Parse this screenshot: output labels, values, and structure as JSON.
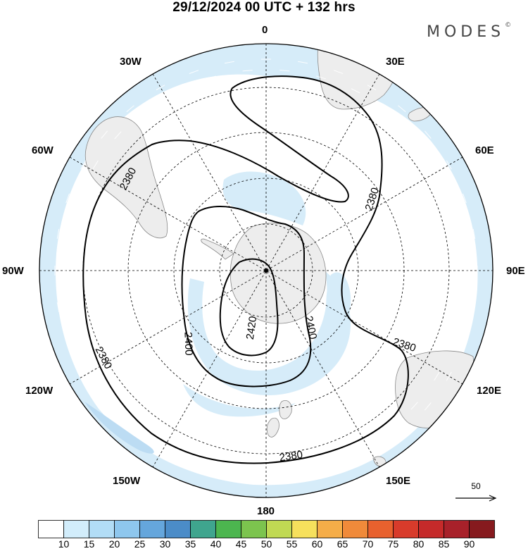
{
  "title": "29/12/2024  00 UTC  + 132 hrs",
  "brand": "MODES",
  "brand_mark": "©",
  "projection": "south-polar-stereographic",
  "longitude_labels": {
    "lon_0": "0",
    "lon_30e": "30E",
    "lon_60e": "60E",
    "lon_90e": "90E",
    "lon_120e": "120E",
    "lon_150e": "150E",
    "lon_180": "180",
    "lon_150w": "150W",
    "lon_120w": "120W",
    "lon_90w": "90W",
    "lon_60w": "60W",
    "lon_30w": "30W"
  },
  "contour_labels": {
    "c2380_a": "2380",
    "c2380_b": "2380",
    "c2380_c": "2380",
    "c2380_d": "2380",
    "c2380_e": "2380",
    "c2400_a": "2400",
    "c2400_b": "2400",
    "c2420": "2420"
  },
  "reference_vector": "50",
  "colorbar": {
    "ticks": [
      "10",
      "15",
      "20",
      "25",
      "30",
      "35",
      "40",
      "45",
      "50",
      "55",
      "60",
      "65",
      "70",
      "75",
      "80",
      "85",
      "90"
    ],
    "colors": [
      "#ffffff",
      "#d2edfb",
      "#b2ddf6",
      "#8ec7ee",
      "#65a6dc",
      "#4b8cc8",
      "#3fa58e",
      "#4cb64f",
      "#7cc44e",
      "#c0d953",
      "#f6e05c",
      "#f5ad48",
      "#f08a3a",
      "#e8612e",
      "#d83b2b",
      "#c52a2a",
      "#a8212a",
      "#861a1e"
    ]
  },
  "colors": {
    "land": "#ededed",
    "land_edge": "#888888",
    "wind_fill": "#d6ecf9",
    "wind_fill_strong": "#bcdcf3",
    "contour": "#000000",
    "grid": "#000000"
  }
}
